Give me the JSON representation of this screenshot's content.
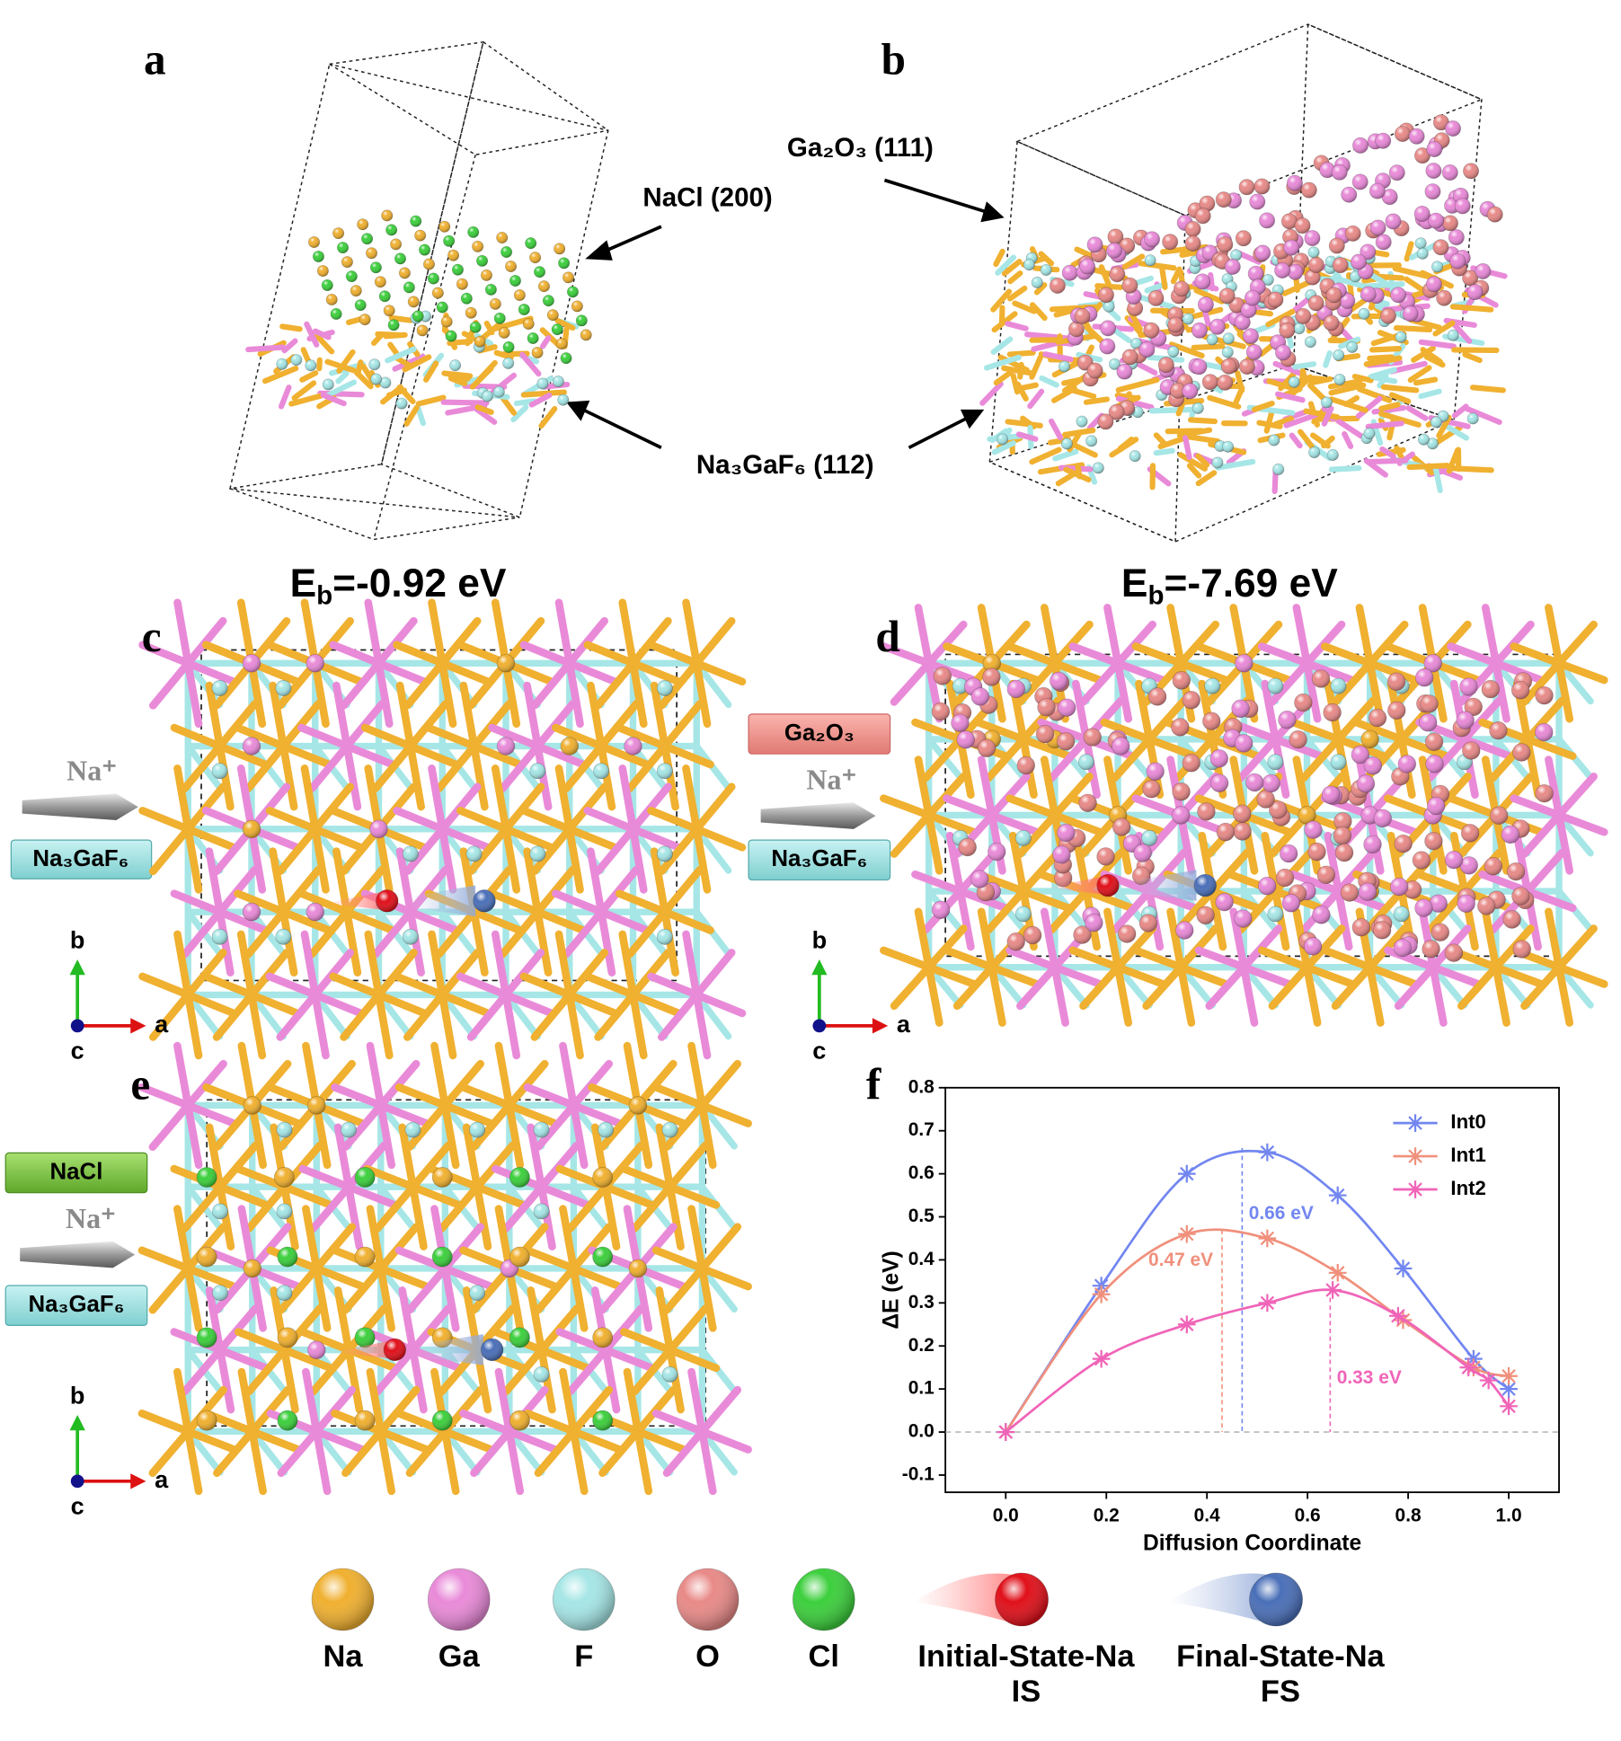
{
  "panel_labels": [
    "a",
    "b",
    "c",
    "d",
    "e",
    "f"
  ],
  "structure_labels": {
    "nacl": "NaCl (200)",
    "ga2o3": "Ga₂O₃ (111)",
    "na3gaf6": "Na₃GaF₆ (112)"
  },
  "binding_energies": [
    {
      "symbol": "E",
      "subscript": "b",
      "text": "=-0.92 eV"
    },
    {
      "symbol": "E",
      "subscript": "b",
      "text": "=-7.69 eV"
    }
  ],
  "interfaces": [
    {
      "ion": "Na⁺",
      "substrate": "Na₃GaF₆"
    },
    {
      "coating": "Ga₂O₃",
      "ion": "Na⁺",
      "substrate": "Na₃GaF₆"
    },
    {
      "coating": "NaCl",
      "ion": "Na⁺",
      "substrate": "Na₃GaF₆"
    }
  ],
  "axis_triads": [
    {
      "a": "a",
      "b": "b",
      "c": "c"
    },
    {
      "a": "a",
      "b": "b",
      "c": "c"
    },
    {
      "a": "a",
      "b": "b",
      "c": "c"
    }
  ],
  "atom_legend": [
    {
      "label": "Na",
      "color": "#f0b030"
    },
    {
      "label": "Ga",
      "color": "#e98ad8"
    },
    {
      "label": "F",
      "color": "#a6e6e6"
    },
    {
      "label": "O",
      "color": "#e88a88"
    },
    {
      "label": "Cl",
      "color": "#3ccf3c"
    }
  ],
  "state_legend": [
    {
      "label": "Initial-State-Na",
      "abbr": "IS",
      "color": "#e0101a"
    },
    {
      "label": "Final-State-Na",
      "abbr": "FS",
      "color": "#4a6fb8"
    }
  ],
  "chart_data": {
    "type": "line",
    "x_label": "Diffusion Coordinate",
    "y_label": "ΔE (eV)",
    "xlim": [
      -0.12,
      1.1
    ],
    "ylim": [
      -0.14,
      0.8
    ],
    "xticks": [
      {
        "value": 0,
        "label": "0.0"
      },
      0.2,
      0.4,
      0.6,
      0.8,
      {
        "value": 1,
        "label": "1.0"
      }
    ],
    "yticks": [
      -0.1,
      {
        "value": 0,
        "label": "0.0"
      },
      0.1,
      0.2,
      0.3,
      0.4,
      0.5,
      0.6,
      0.7,
      0.8
    ],
    "zero_line": true,
    "legend": "upper right",
    "series": [
      {
        "name": "Int0",
        "color": "#7286f0",
        "x": [
          0,
          0.19,
          0.36,
          0.52,
          0.66,
          0.79,
          0.93,
          1.0
        ],
        "values": [
          0,
          0.34,
          0.6,
          0.65,
          0.55,
          0.38,
          0.17,
          0.1
        ]
      },
      {
        "name": "Int1",
        "color": "#f0907c",
        "x": [
          0,
          0.19,
          0.36,
          0.52,
          0.66,
          0.79,
          0.93,
          1.0
        ],
        "values": [
          0,
          0.32,
          0.46,
          0.45,
          0.37,
          0.26,
          0.15,
          0.13
        ]
      },
      {
        "name": "Int2",
        "color": "#f064b8",
        "x": [
          0,
          0.19,
          0.36,
          0.52,
          0.65,
          0.78,
          0.92,
          0.96,
          1.0
        ],
        "values": [
          0,
          0.17,
          0.25,
          0.3,
          0.33,
          0.27,
          0.15,
          0.12,
          0.06
        ]
      }
    ],
    "annotations": [
      {
        "text": "0.66 eV",
        "x": 0.47,
        "y": 0.66,
        "color": "#7286f0"
      },
      {
        "text": "0.47 eV",
        "x": 0.43,
        "y": 0.47,
        "color": "#f0907c"
      },
      {
        "text": "0.33 eV",
        "x": 0.645,
        "y": 0.33,
        "color": "#f064b8"
      }
    ]
  }
}
